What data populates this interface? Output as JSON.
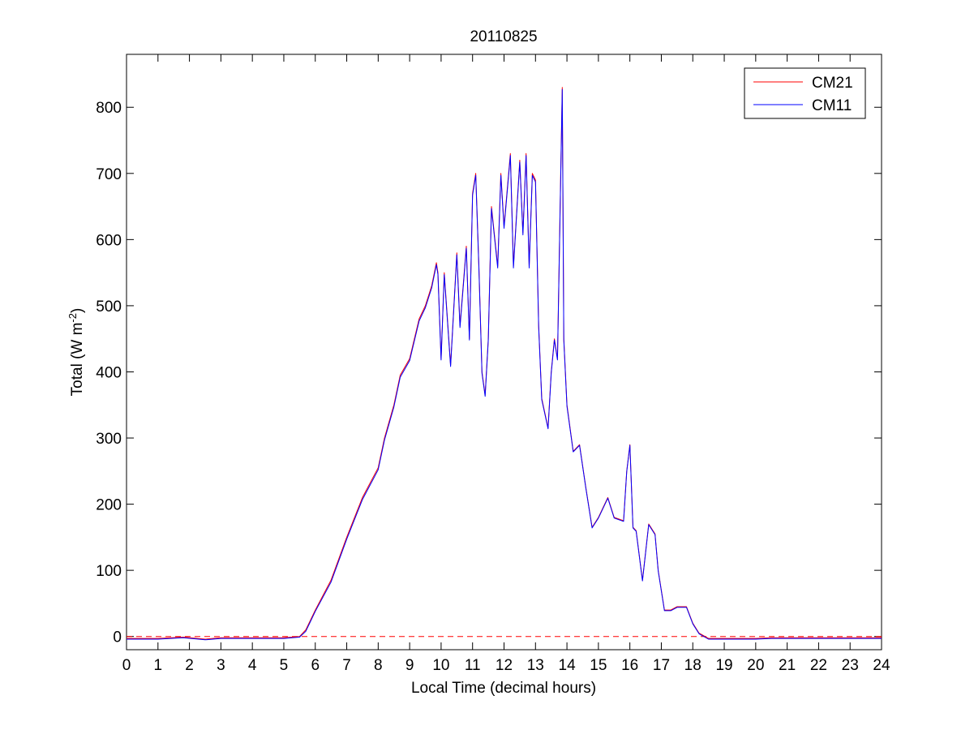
{
  "chart_data": {
    "type": "line",
    "title": "20110825",
    "xlabel": "Local Time (decimal hours)",
    "ylabel": {
      "prefix": "Total (W m",
      "superscript": "-2",
      "suffix": ")"
    },
    "xlim": [
      0,
      24
    ],
    "ylim": [
      -20,
      880
    ],
    "xticks": [
      0,
      1,
      2,
      3,
      4,
      5,
      6,
      7,
      8,
      9,
      10,
      11,
      12,
      13,
      14,
      15,
      16,
      17,
      18,
      19,
      20,
      21,
      22,
      23,
      24
    ],
    "yticks": [
      0,
      100,
      200,
      300,
      400,
      500,
      600,
      700,
      800
    ],
    "grid": false,
    "legend_position": "top-right",
    "reference_line": {
      "y": 0,
      "style": "dashed",
      "color": "#ff0000"
    },
    "series": [
      {
        "name": "CM21",
        "color": "#ff0000",
        "x": [
          0,
          1,
          1.8,
          2.5,
          3,
          4,
          5,
          5.5,
          5.7,
          6,
          6.5,
          7,
          7.5,
          8,
          8.2,
          8.5,
          8.7,
          9,
          9.3,
          9.5,
          9.7,
          9.85,
          9.9,
          10,
          10.1,
          10.3,
          10.5,
          10.6,
          10.8,
          10.9,
          11,
          11.1,
          11.2,
          11.3,
          11.4,
          11.5,
          11.6,
          11.8,
          11.9,
          12,
          12.2,
          12.3,
          12.5,
          12.6,
          12.7,
          12.8,
          12.9,
          13,
          13.1,
          13.2,
          13.4,
          13.5,
          13.6,
          13.7,
          13.85,
          13.9,
          14,
          14.2,
          14.4,
          14.6,
          14.8,
          15,
          15.3,
          15.5,
          15.8,
          15.9,
          16,
          16.1,
          16.2,
          16.4,
          16.6,
          16.8,
          16.9,
          17.1,
          17.3,
          17.5,
          17.8,
          18,
          18.2,
          18.5,
          19,
          19.5,
          20,
          20.5,
          21,
          21.5,
          22,
          23,
          24
        ],
        "y": [
          -3,
          -3,
          -1,
          -4,
          -2,
          -2,
          -2,
          0,
          10,
          40,
          85,
          150,
          210,
          255,
          300,
          350,
          395,
          420,
          480,
          500,
          530,
          565,
          550,
          420,
          550,
          410,
          580,
          470,
          590,
          450,
          670,
          700,
          560,
          400,
          365,
          450,
          650,
          560,
          700,
          620,
          730,
          560,
          720,
          610,
          730,
          560,
          700,
          690,
          470,
          360,
          315,
          400,
          450,
          420,
          830,
          450,
          350,
          280,
          290,
          225,
          165,
          180,
          210,
          180,
          175,
          250,
          290,
          165,
          160,
          85,
          170,
          155,
          100,
          40,
          40,
          45,
          45,
          20,
          5,
          -3,
          -3,
          -3,
          -3,
          -2,
          -2,
          -2,
          -2,
          -2,
          -2
        ]
      },
      {
        "name": "CM11",
        "color": "#0000ff",
        "x": [
          0,
          1,
          1.8,
          2.5,
          3,
          4,
          5,
          5.5,
          5.7,
          6,
          6.5,
          7,
          7.5,
          8,
          8.2,
          8.5,
          8.7,
          9,
          9.3,
          9.5,
          9.7,
          9.85,
          9.9,
          10,
          10.1,
          10.3,
          10.5,
          10.6,
          10.8,
          10.9,
          11,
          11.1,
          11.2,
          11.3,
          11.4,
          11.5,
          11.6,
          11.8,
          11.9,
          12,
          12.2,
          12.3,
          12.5,
          12.6,
          12.7,
          12.8,
          12.9,
          13,
          13.1,
          13.2,
          13.4,
          13.5,
          13.6,
          13.7,
          13.85,
          13.9,
          14,
          14.2,
          14.4,
          14.6,
          14.8,
          15,
          15.3,
          15.5,
          15.8,
          15.9,
          16,
          16.1,
          16.2,
          16.4,
          16.6,
          16.8,
          16.9,
          17.1,
          17.3,
          17.5,
          17.8,
          18,
          18.2,
          18.5,
          19,
          19.5,
          20,
          20.5,
          21,
          21.5,
          22,
          23,
          24
        ],
        "y": [
          -4,
          -4,
          -2,
          -5,
          -3,
          -3,
          -3,
          -1,
          8,
          38,
          82,
          147,
          207,
          252,
          297,
          347,
          392,
          417,
          477,
          497,
          527,
          562,
          547,
          418,
          547,
          408,
          577,
          467,
          587,
          448,
          667,
          697,
          557,
          398,
          363,
          448,
          647,
          557,
          697,
          617,
          727,
          557,
          717,
          607,
          727,
          557,
          697,
          687,
          468,
          358,
          314,
          398,
          448,
          418,
          827,
          448,
          348,
          279,
          289,
          224,
          164,
          179,
          209,
          179,
          174,
          249,
          289,
          164,
          159,
          84,
          169,
          154,
          99,
          39,
          39,
          44,
          44,
          19,
          4,
          -4,
          -4,
          -4,
          -4,
          -3,
          -3,
          -3,
          -3,
          -3,
          -3
        ]
      }
    ]
  }
}
